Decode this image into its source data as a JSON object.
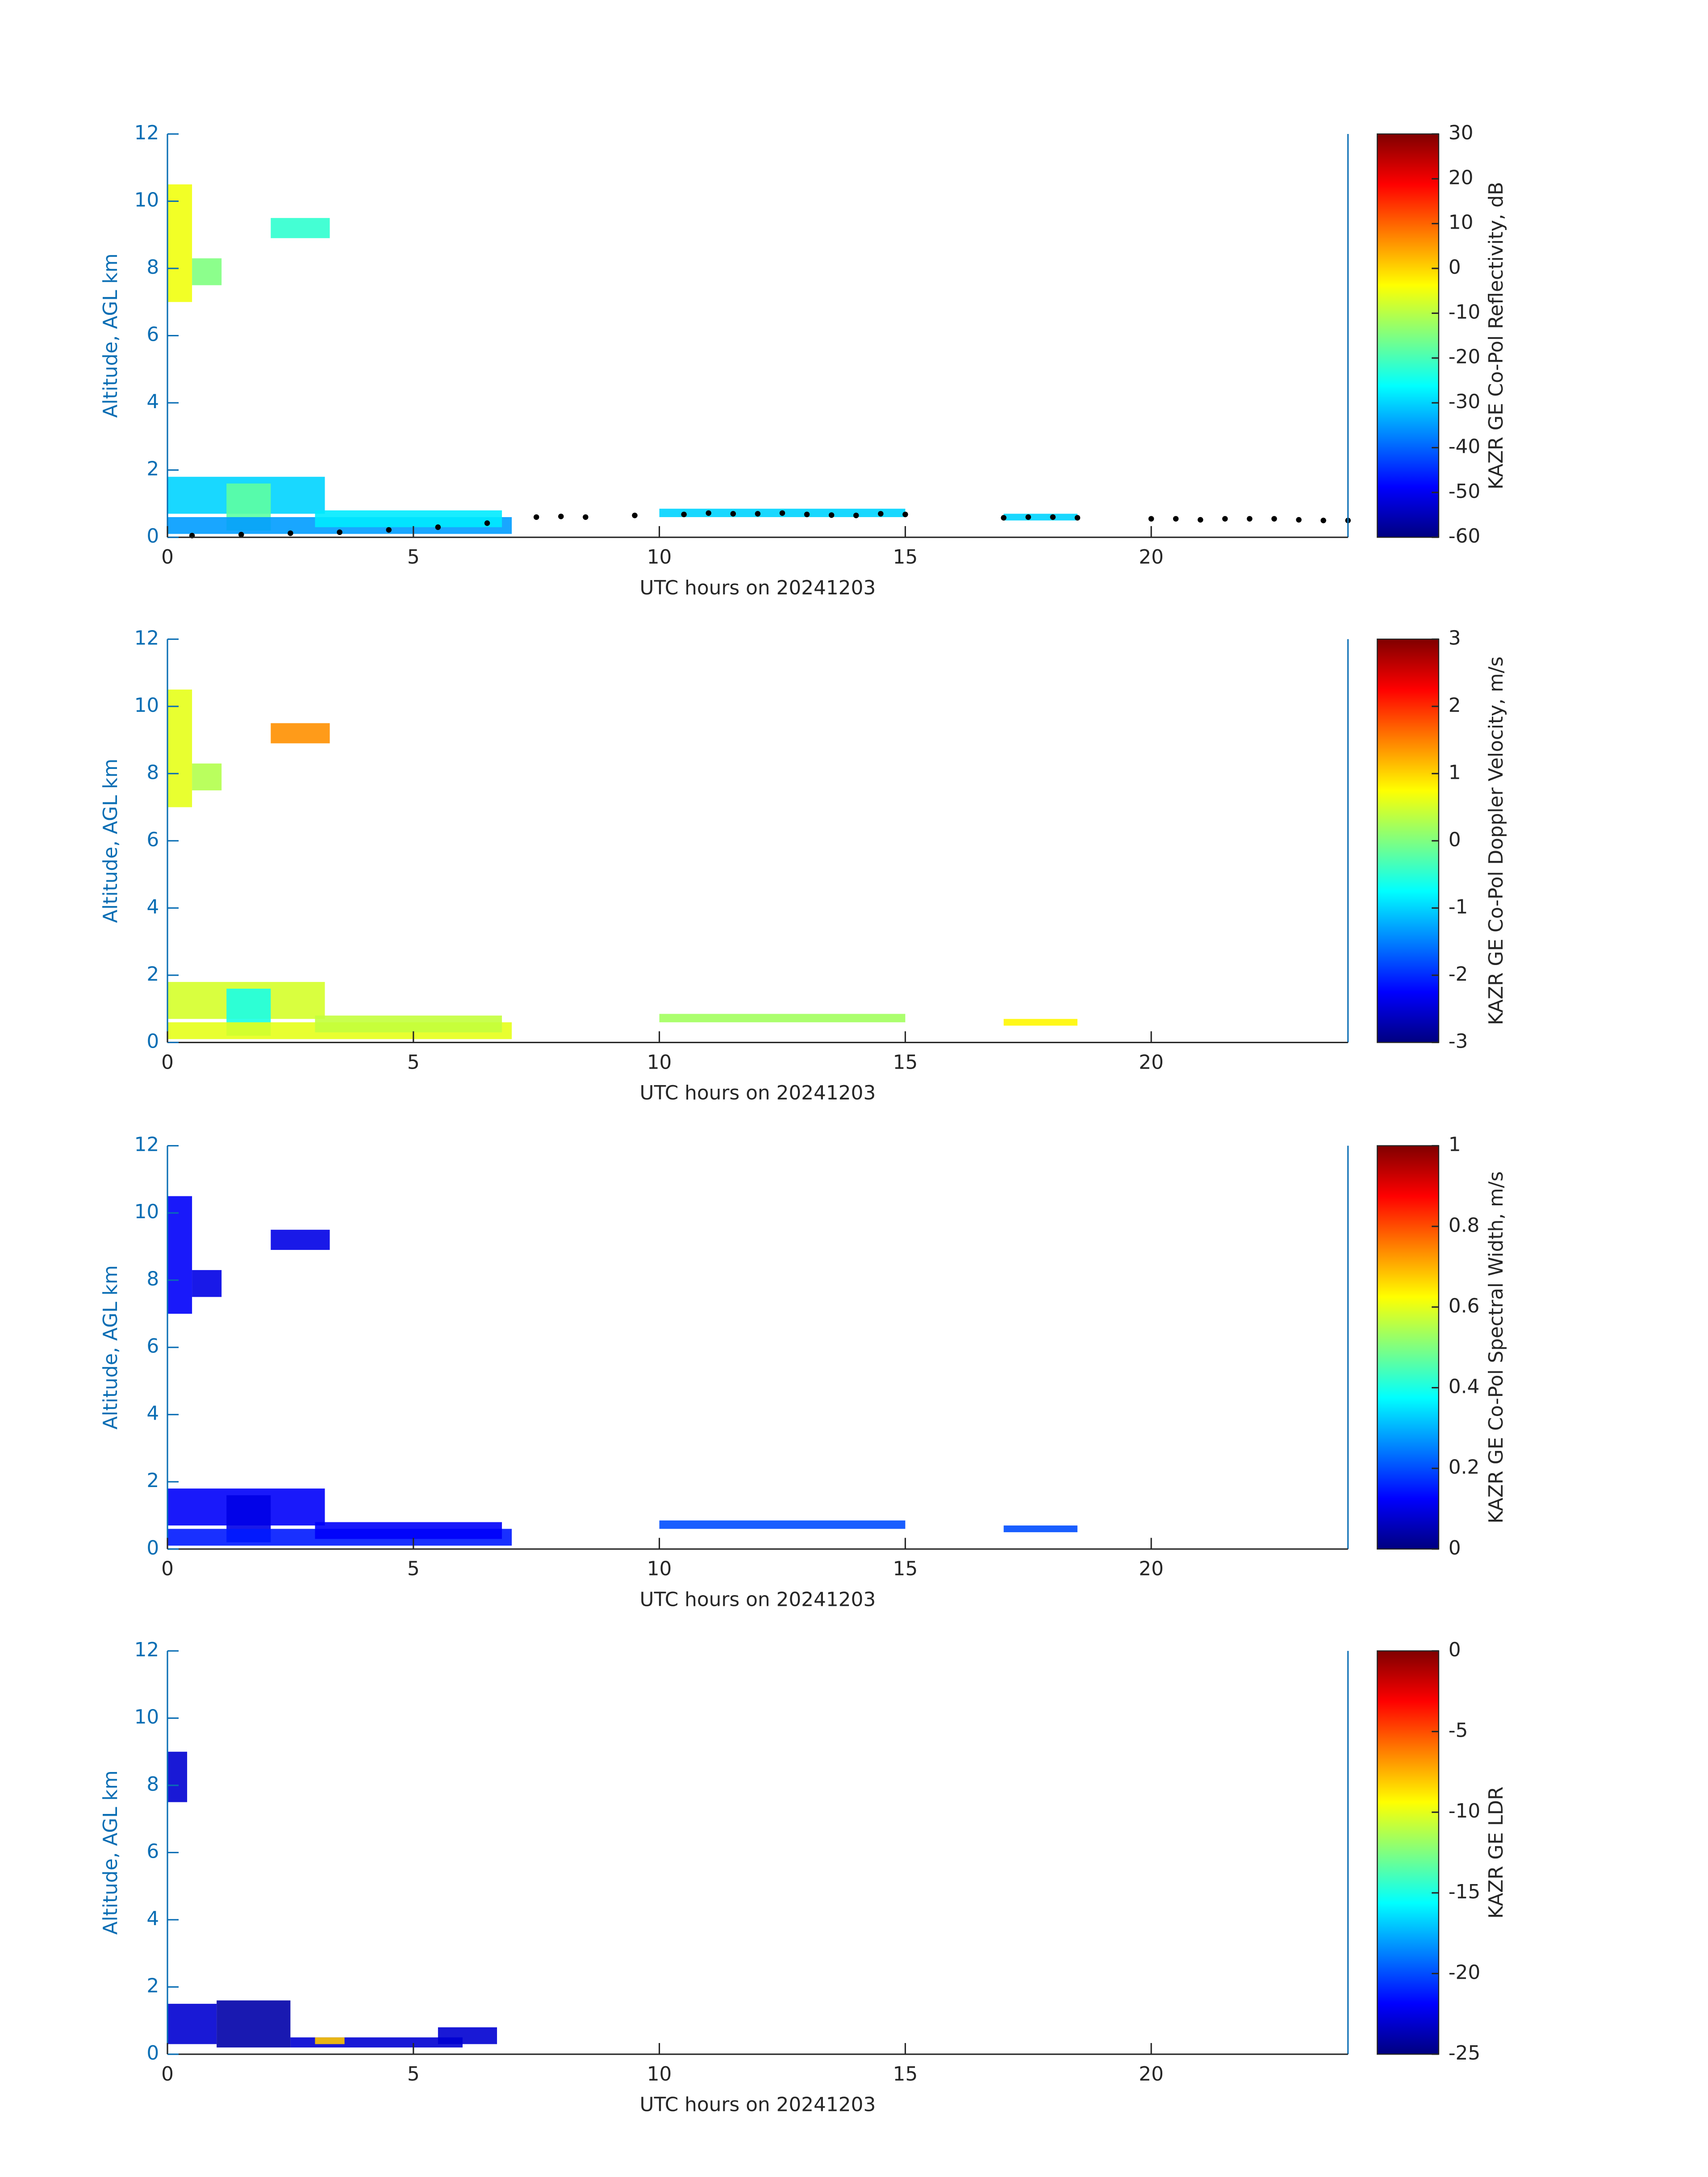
{
  "chart_data": [
    {
      "type": "heatmap",
      "xlabel": "UTC hours on 20241203",
      "ylabel": "Altitude, AGL km",
      "colorbar_label": "KAZR GE Co-Pol Reflectivity, dB",
      "colormap": "jet",
      "xlim": [
        0,
        24
      ],
      "xticks": [
        0,
        5,
        10,
        15,
        20
      ],
      "ylim": [
        0,
        12
      ],
      "yticks": [
        0,
        2,
        4,
        6,
        8,
        10,
        12
      ],
      "clim": [
        -60,
        30
      ],
      "cticks": [
        -60,
        -50,
        -40,
        -30,
        -20,
        -10,
        0,
        10,
        20,
        30
      ],
      "cells": [
        {
          "x": [
            0,
            0.5
          ],
          "y": [
            7,
            10.5
          ],
          "value": -5
        },
        {
          "x": [
            0.5,
            1.1
          ],
          "y": [
            7.5,
            8.3
          ],
          "value": -15
        },
        {
          "x": [
            2.1,
            3.3
          ],
          "y": [
            8.9,
            9.5
          ],
          "value": -22
        },
        {
          "x": [
            0,
            3.2
          ],
          "y": [
            0.7,
            1.8
          ],
          "value": -30
        },
        {
          "x": [
            1.2,
            2.1
          ],
          "y": [
            0.2,
            1.6
          ],
          "value": -18
        },
        {
          "x": [
            0,
            7
          ],
          "y": [
            0.1,
            0.6
          ],
          "value": -35
        },
        {
          "x": [
            3,
            6.8
          ],
          "y": [
            0.3,
            0.8
          ],
          "value": -28
        },
        {
          "x": [
            10,
            15
          ],
          "y": [
            0.6,
            0.85
          ],
          "value": -30
        },
        {
          "x": [
            17,
            18.5
          ],
          "y": [
            0.5,
            0.7
          ],
          "value": -30
        }
      ],
      "markers": {
        "color": "#000000",
        "x": [
          0.5,
          1.5,
          2.5,
          3.5,
          4.5,
          5.5,
          6.5,
          7.5,
          8,
          8.5,
          9.5,
          10.5,
          11,
          11.5,
          12,
          12.5,
          13,
          13.5,
          14,
          14.5,
          15,
          17,
          17.5,
          18,
          18.5,
          20,
          20.5,
          21,
          21.5,
          22,
          22.5,
          23,
          23.5,
          24
        ],
        "y": [
          0.05,
          0.08,
          0.12,
          0.15,
          0.22,
          0.3,
          0.42,
          0.6,
          0.62,
          0.6,
          0.65,
          0.68,
          0.72,
          0.7,
          0.7,
          0.72,
          0.68,
          0.66,
          0.65,
          0.7,
          0.68,
          0.58,
          0.6,
          0.6,
          0.58,
          0.55,
          0.55,
          0.52,
          0.55,
          0.55,
          0.55,
          0.52,
          0.5,
          0.5
        ]
      }
    },
    {
      "type": "heatmap",
      "xlabel": "UTC hours on 20241203",
      "ylabel": "Altitude, AGL km",
      "colorbar_label": "KAZR GE Co-Pol Doppler Velocity, m/s",
      "colormap": "jet",
      "xlim": [
        0,
        24
      ],
      "xticks": [
        0,
        5,
        10,
        15,
        20
      ],
      "ylim": [
        0,
        12
      ],
      "yticks": [
        0,
        2,
        4,
        6,
        8,
        10,
        12
      ],
      "clim": [
        -3,
        3
      ],
      "cticks": [
        -3,
        -2,
        -1,
        0,
        1,
        2,
        3
      ],
      "cells": [
        {
          "x": [
            0,
            0.5
          ],
          "y": [
            7,
            10.5
          ],
          "value": 0.6
        },
        {
          "x": [
            0.5,
            1.1
          ],
          "y": [
            7.5,
            8.3
          ],
          "value": 0.3
        },
        {
          "x": [
            2.1,
            3.3
          ],
          "y": [
            8.9,
            9.5
          ],
          "value": 1.4
        },
        {
          "x": [
            0,
            3.2
          ],
          "y": [
            0.7,
            1.8
          ],
          "value": 0.5
        },
        {
          "x": [
            1.2,
            2.1
          ],
          "y": [
            0.2,
            1.6
          ],
          "value": -0.6
        },
        {
          "x": [
            0,
            7
          ],
          "y": [
            0.1,
            0.6
          ],
          "value": 0.6
        },
        {
          "x": [
            3,
            6.8
          ],
          "y": [
            0.3,
            0.8
          ],
          "value": 0.4
        },
        {
          "x": [
            10,
            15
          ],
          "y": [
            0.6,
            0.85
          ],
          "value": 0.2
        },
        {
          "x": [
            17,
            18.5
          ],
          "y": [
            0.5,
            0.7
          ],
          "value": 0.8
        }
      ]
    },
    {
      "type": "heatmap",
      "xlabel": "UTC hours on 20241203",
      "ylabel": "Altitude, AGL km",
      "colorbar_label": "KAZR GE Co-Pol Spectral Width, m/s",
      "colormap": "jet",
      "xlim": [
        0,
        24
      ],
      "xticks": [
        0,
        5,
        10,
        15,
        20
      ],
      "ylim": [
        0,
        12
      ],
      "yticks": [
        0,
        2,
        4,
        6,
        8,
        10,
        12
      ],
      "clim": [
        0,
        1
      ],
      "cticks": [
        0,
        0.2,
        0.4,
        0.6,
        0.8,
        1
      ],
      "cells": [
        {
          "x": [
            0,
            0.5
          ],
          "y": [
            7,
            10.5
          ],
          "value": 0.12
        },
        {
          "x": [
            0.5,
            1.1
          ],
          "y": [
            7.5,
            8.3
          ],
          "value": 0.1
        },
        {
          "x": [
            2.1,
            3.3
          ],
          "y": [
            8.9,
            9.5
          ],
          "value": 0.1
        },
        {
          "x": [
            0,
            3.2
          ],
          "y": [
            0.7,
            1.8
          ],
          "value": 0.12
        },
        {
          "x": [
            1.2,
            2.1
          ],
          "y": [
            0.2,
            1.6
          ],
          "value": 0.1
        },
        {
          "x": [
            0,
            7
          ],
          "y": [
            0.1,
            0.6
          ],
          "value": 0.15
        },
        {
          "x": [
            3,
            6.8
          ],
          "y": [
            0.3,
            0.8
          ],
          "value": 0.12
        },
        {
          "x": [
            10,
            15
          ],
          "y": [
            0.6,
            0.85
          ],
          "value": 0.2
        },
        {
          "x": [
            17,
            18.5
          ],
          "y": [
            0.5,
            0.7
          ],
          "value": 0.2
        }
      ]
    },
    {
      "type": "heatmap",
      "xlabel": "UTC hours on 20241203",
      "ylabel": "Altitude, AGL km",
      "colorbar_label": "KAZR GE LDR",
      "colormap": "jet",
      "xlim": [
        0,
        24
      ],
      "xticks": [
        0,
        5,
        10,
        15,
        20
      ],
      "ylim": [
        0,
        12
      ],
      "yticks": [
        0,
        2,
        4,
        6,
        8,
        10,
        12
      ],
      "clim": [
        -25,
        0
      ],
      "cticks": [
        -25,
        -20,
        -15,
        -10,
        -5,
        0
      ],
      "cells": [
        {
          "x": [
            0,
            0.4
          ],
          "y": [
            7.5,
            9
          ],
          "value": -23
        },
        {
          "x": [
            0,
            1.0
          ],
          "y": [
            0.3,
            1.5
          ],
          "value": -23
        },
        {
          "x": [
            1.0,
            2.5
          ],
          "y": [
            0.2,
            1.6
          ],
          "value": -24
        },
        {
          "x": [
            2.5,
            6.0
          ],
          "y": [
            0.2,
            0.5
          ],
          "value": -23
        },
        {
          "x": [
            3.0,
            3.6
          ],
          "y": [
            0.3,
            0.5
          ],
          "value": -8
        },
        {
          "x": [
            5.5,
            6.7
          ],
          "y": [
            0.3,
            0.8
          ],
          "value": -23
        }
      ]
    }
  ]
}
